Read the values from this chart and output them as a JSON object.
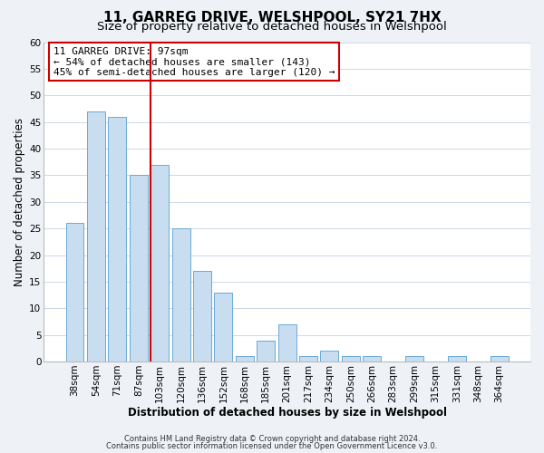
{
  "title": "11, GARREG DRIVE, WELSHPOOL, SY21 7HX",
  "subtitle": "Size of property relative to detached houses in Welshpool",
  "xlabel": "Distribution of detached houses by size in Welshpool",
  "ylabel": "Number of detached properties",
  "bar_values": [
    26,
    47,
    46,
    35,
    37,
    25,
    17,
    13,
    1,
    4,
    7,
    1,
    2,
    1,
    1,
    0,
    1,
    0,
    1,
    0,
    1
  ],
  "bar_labels": [
    "38sqm",
    "54sqm",
    "71sqm",
    "87sqm",
    "103sqm",
    "120sqm",
    "136sqm",
    "152sqm",
    "168sqm",
    "185sqm",
    "201sqm",
    "217sqm",
    "234sqm",
    "250sqm",
    "266sqm",
    "283sqm",
    "299sqm",
    "315sqm",
    "331sqm",
    "348sqm",
    "364sqm"
  ],
  "bar_color": "#c8ddf0",
  "bar_edgecolor": "#6aaad4",
  "ylim": [
    0,
    60
  ],
  "yticks": [
    0,
    5,
    10,
    15,
    20,
    25,
    30,
    35,
    40,
    45,
    50,
    55,
    60
  ],
  "red_line_index": 4,
  "annotation_title": "11 GARREG DRIVE: 97sqm",
  "annotation_line1": "← 54% of detached houses are smaller (143)",
  "annotation_line2": "45% of semi-detached houses are larger (120) →",
  "footer_line1": "Contains HM Land Registry data © Crown copyright and database right 2024.",
  "footer_line2": "Contains public sector information licensed under the Open Government Licence v3.0.",
  "background_color": "#eef2f7",
  "plot_background_color": "#ffffff",
  "title_fontsize": 11,
  "subtitle_fontsize": 9.5,
  "axis_label_fontsize": 8.5,
  "tick_fontsize": 7.5,
  "annotation_fontsize": 8.0,
  "footer_fontsize": 6.0,
  "annotation_box_color": "#ffffff",
  "annotation_box_edgecolor": "#cc0000",
  "red_line_color": "#cc0000",
  "grid_color": "#ccd8e8"
}
